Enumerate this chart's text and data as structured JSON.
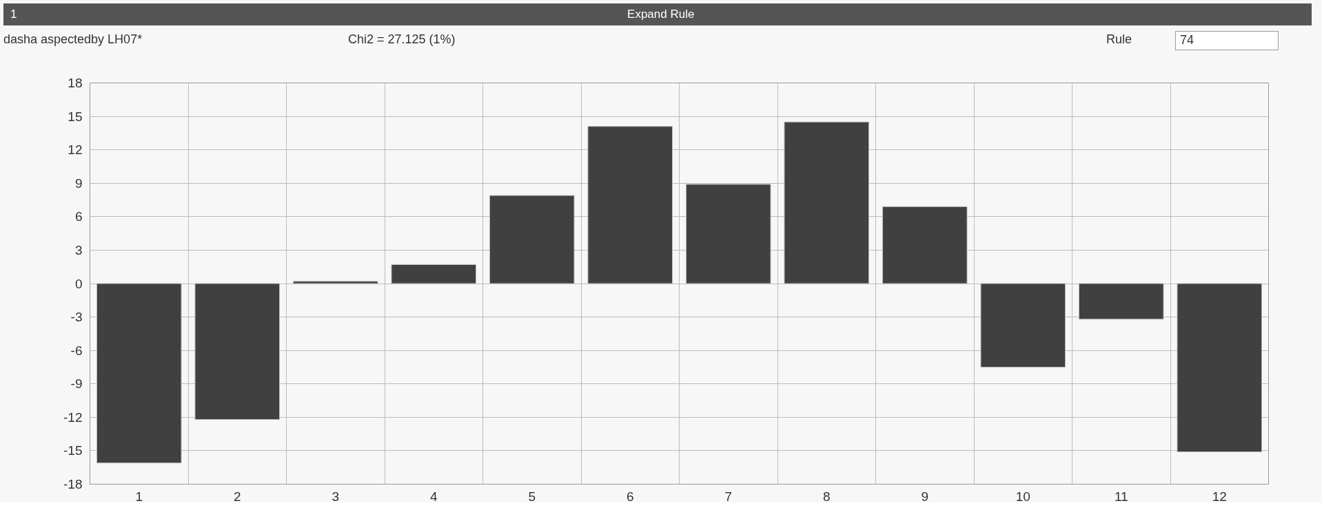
{
  "chart_data": {
    "type": "bar",
    "title": "Expand Rule",
    "subtitle": "dasha aspectedby LH07*",
    "annotations": [
      "1",
      "Chi2 = 27.125 (1%)",
      "Rule",
      "74"
    ],
    "categories": [
      "1",
      "2",
      "3",
      "4",
      "5",
      "6",
      "7",
      "8",
      "9",
      "10",
      "11",
      "12"
    ],
    "values": [
      -16.1,
      -12.2,
      0.2,
      1.7,
      7.9,
      14.1,
      8.9,
      14.5,
      6.9,
      -7.5,
      -3.2,
      -15.1
    ],
    "color": "#404040",
    "ylim": [
      -18,
      18
    ],
    "yticks": [
      -18,
      -15,
      -12,
      -9,
      -6,
      -3,
      0,
      3,
      6,
      9,
      12,
      15,
      18
    ],
    "grid": true
  }
}
